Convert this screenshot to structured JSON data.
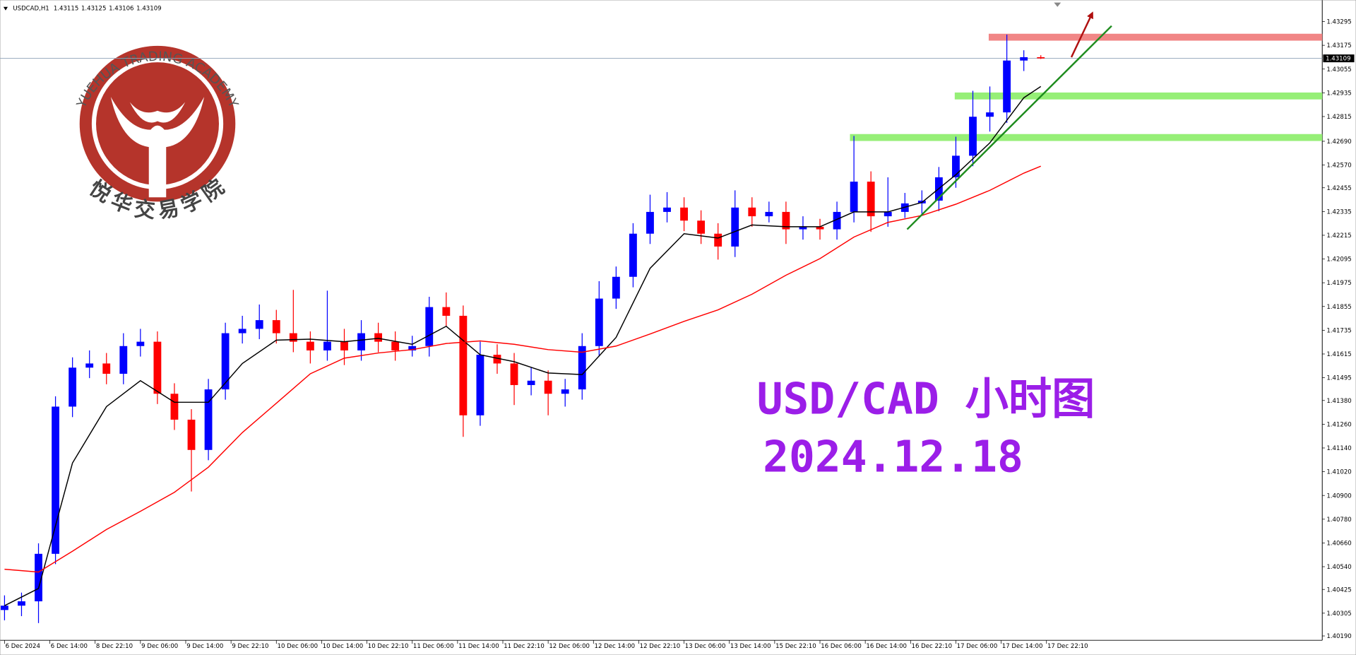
{
  "chart_data": {
    "type": "candlestick",
    "title": "USDCAD,H1",
    "headline": "USD/CAD 小时图",
    "date_label": "2024.12.18",
    "watermark": {
      "text": "YUEHUA TRADING ACADEMY",
      "subtext": "悦华交易学院"
    },
    "up_color": "#0000ff",
    "down_color": "#ff0000",
    "xlim": [
      -0.8,
      232.7
    ],
    "ylim": [
      1.40168,
      1.43404
    ],
    "xticks": [
      {
        "value": 0,
        "label": "6 Dec 2024"
      },
      {
        "value": 8,
        "label": "6 Dec 14:00"
      },
      {
        "value": 16,
        "label": "8 Dec 22:10"
      },
      {
        "value": 24,
        "label": "9 Dec 06:00"
      },
      {
        "value": 32,
        "label": "9 Dec 14:00"
      },
      {
        "value": 40,
        "label": "9 Dec 22:10"
      },
      {
        "value": 48,
        "label": "10 Dec 06:00"
      },
      {
        "value": 56,
        "label": "10 Dec 14:00"
      },
      {
        "value": 64,
        "label": "10 Dec 22:10"
      },
      {
        "value": 72,
        "label": "11 Dec 06:00"
      },
      {
        "value": 80,
        "label": "11 Dec 14:00"
      },
      {
        "value": 88,
        "label": "11 Dec 22:10"
      },
      {
        "value": 96,
        "label": "12 Dec 06:00"
      },
      {
        "value": 104,
        "label": "12 Dec 14:00"
      },
      {
        "value": 112,
        "label": "12 Dec 22:10"
      },
      {
        "value": 120,
        "label": "13 Dec 06:00"
      },
      {
        "value": 128,
        "label": "13 Dec 14:00"
      },
      {
        "value": 136,
        "label": "15 Dec 22:10"
      },
      {
        "value": 144,
        "label": "16 Dec 06:00"
      },
      {
        "value": 152,
        "label": "16 Dec 14:00"
      },
      {
        "value": 160,
        "label": "16 Dec 22:10"
      },
      {
        "value": 168,
        "label": "17 Dec 06:00"
      },
      {
        "value": 176,
        "label": "17 Dec 14:00"
      },
      {
        "value": 184,
        "label": "17 Dec 22:10"
      }
    ],
    "yticks": [
      1.43295,
      1.43175,
      1.43055,
      1.42935,
      1.42815,
      {
        "value": 1.4269,
        "label": "1.42690"
      },
      {
        "value": 1.4257,
        "label": "1.42570"
      },
      1.42455,
      1.42335,
      1.42215,
      1.42095,
      1.41975,
      1.41855,
      1.41735,
      1.41615,
      1.41495,
      {
        "value": 1.4138,
        "label": "1.41380"
      },
      {
        "value": 1.4126,
        "label": "1.41260"
      },
      {
        "value": 1.4114,
        "label": "1.41140"
      },
      {
        "value": 1.4102,
        "label": "1.41020"
      },
      {
        "value": 1.409,
        "label": "1.40900"
      },
      {
        "value": 1.4078,
        "label": "1.40780"
      },
      {
        "value": 1.4066,
        "label": "1.40660"
      },
      {
        "value": 1.4054,
        "label": "1.40540"
      },
      1.40425,
      1.40305,
      {
        "value": 1.4019,
        "label": "1.40190"
      }
    ],
    "x": [
      0,
      3,
      6,
      9,
      12,
      15,
      18,
      21,
      24,
      27,
      30,
      33,
      36,
      39,
      42,
      45,
      48,
      51,
      54,
      57,
      60,
      63,
      66,
      69,
      72,
      75,
      78,
      81,
      84,
      87,
      90,
      93,
      96,
      99,
      102,
      105,
      108,
      111,
      114,
      117,
      120,
      123,
      126,
      129,
      132,
      135,
      138,
      141,
      144,
      147,
      150,
      153,
      156,
      159,
      162,
      165,
      168,
      171,
      174,
      177,
      180,
      183
    ],
    "open": [
      1.40321,
      1.40343,
      1.40365,
      1.40605,
      1.41349,
      1.41546,
      1.41567,
      1.41515,
      1.41655,
      1.41677,
      1.41414,
      1.41283,
      1.4113,
      1.41436,
      1.4172,
      1.41742,
      1.41786,
      1.4172,
      1.41677,
      1.41633,
      1.41677,
      1.41633,
      1.4172,
      1.41677,
      1.41633,
      1.41655,
      1.41852,
      1.41808,
      1.41305,
      1.41611,
      1.41567,
      1.41458,
      1.4148,
      1.41414,
      1.41436,
      1.41655,
      1.41895,
      1.42005,
      1.42223,
      1.42333,
      1.42355,
      1.42289,
      1.42223,
      1.42158,
      1.42355,
      1.42311,
      1.42333,
      1.42245,
      1.42258,
      1.42245,
      1.42333,
      1.42486,
      1.42311,
      1.42333,
      1.42376,
      1.4239,
      1.42508,
      1.42617,
      1.42814,
      1.42836,
      1.43098,
      1.43115
    ],
    "high": [
      1.40395,
      1.40409,
      1.40658,
      1.41401,
      1.41598,
      1.41633,
      1.4162,
      1.4172,
      1.41742,
      1.41729,
      1.41467,
      1.41336,
      1.41489,
      1.41773,
      1.41808,
      1.41865,
      1.41838,
      1.41939,
      1.41729,
      1.41935,
      1.41742,
      1.41786,
      1.41773,
      1.41729,
      1.41707,
      1.41904,
      1.41926,
      1.4186,
      1.41677,
      1.41664,
      1.4162,
      1.41546,
      1.41532,
      1.41489,
      1.4172,
      1.41983,
      1.42057,
      1.42276,
      1.4242,
      1.42433,
      1.42407,
      1.42341,
      1.42276,
      1.42442,
      1.42407,
      1.42385,
      1.42385,
      1.42311,
      1.42298,
      1.42385,
      1.42717,
      1.42538,
      1.42508,
      1.42429,
      1.42442,
      1.4256,
      1.42713,
      1.42945,
      1.42967,
      1.43229,
      1.4315,
      1.43125
    ],
    "low": [
      1.40269,
      1.4029,
      1.40255,
      1.40553,
      1.41296,
      1.41493,
      1.41462,
      1.41462,
      1.41602,
      1.41362,
      1.41231,
      1.4092,
      1.41078,
      1.41384,
      1.41668,
      1.4169,
      1.41668,
      1.41624,
      1.41567,
      1.41581,
      1.41559,
      1.41581,
      1.41624,
      1.41581,
      1.41602,
      1.41602,
      1.41755,
      1.41196,
      1.41252,
      1.41515,
      1.41357,
      1.41406,
      1.41305,
      1.41349,
      1.41384,
      1.41602,
      1.41843,
      1.41952,
      1.42171,
      1.4228,
      1.42236,
      1.42171,
      1.42092,
      1.42105,
      1.42258,
      1.4228,
      1.42171,
      1.42193,
      1.42193,
      1.42193,
      1.4228,
      1.42232,
      1.42258,
      1.42302,
      1.42324,
      1.42337,
      1.42455,
      1.42564,
      1.42739,
      1.42783,
      1.43045,
      1.43106
    ],
    "close": [
      1.40343,
      1.40365,
      1.40605,
      1.41349,
      1.41546,
      1.41567,
      1.41515,
      1.41655,
      1.41677,
      1.41414,
      1.41283,
      1.4113,
      1.41436,
      1.4172,
      1.41742,
      1.41786,
      1.4172,
      1.41677,
      1.41633,
      1.41677,
      1.41633,
      1.4172,
      1.41677,
      1.41633,
      1.41655,
      1.41852,
      1.41808,
      1.41305,
      1.41611,
      1.41567,
      1.41458,
      1.4148,
      1.41414,
      1.41436,
      1.41655,
      1.41895,
      1.42005,
      1.42223,
      1.42333,
      1.42355,
      1.42289,
      1.42223,
      1.42158,
      1.42355,
      1.42311,
      1.42333,
      1.42245,
      1.42258,
      1.42245,
      1.42333,
      1.42486,
      1.42311,
      1.42333,
      1.42376,
      1.4239,
      1.42508,
      1.42617,
      1.42814,
      1.42836,
      1.43098,
      1.43115,
      1.43109
    ],
    "lines": [
      {
        "color": "#000000",
        "x": [
          0,
          6,
          12,
          18,
          24,
          30,
          36,
          42,
          48,
          54,
          60,
          66,
          72,
          78,
          84,
          90,
          96,
          102,
          108,
          114,
          120,
          126,
          132,
          138,
          144,
          150,
          156,
          162,
          168,
          174,
          180,
          183
        ],
        "values": [
          1.40343,
          1.4043,
          1.41064,
          1.41349,
          1.4148,
          1.41371,
          1.41371,
          1.41567,
          1.41685,
          1.4169,
          1.41677,
          1.41694,
          1.41664,
          1.41755,
          1.41611,
          1.41576,
          1.41519,
          1.41511,
          1.41699,
          1.42048,
          1.42223,
          1.42201,
          1.42267,
          1.42258,
          1.42258,
          1.42333,
          1.42333,
          1.42381,
          1.42521,
          1.42682,
          1.4291,
          1.42967
        ]
      },
      {
        "color": "#ff0000",
        "x": [
          0,
          6,
          12,
          18,
          24,
          30,
          36,
          42,
          48,
          54,
          60,
          66,
          72,
          78,
          84,
          90,
          96,
          102,
          108,
          114,
          120,
          126,
          132,
          138,
          144,
          150,
          156,
          162,
          168,
          174,
          180,
          183
        ],
        "values": [
          1.40527,
          1.40513,
          1.40618,
          1.40728,
          1.4082,
          1.40916,
          1.41043,
          1.41218,
          1.41366,
          1.41515,
          1.41594,
          1.4162,
          1.41637,
          1.41668,
          1.41681,
          1.41664,
          1.41637,
          1.41624,
          1.41655,
          1.41716,
          1.4178,
          1.41838,
          1.41917,
          1.42013,
          1.42097,
          1.42206,
          1.4228,
          1.42315,
          1.42372,
          1.42442,
          1.42529,
          1.42564
        ]
      }
    ],
    "zones": [
      {
        "color": "#f08080",
        "from": 173.8,
        "value": 1.43216
      },
      {
        "color": "#90ee70",
        "from": 167.8,
        "value": 1.42919
      },
      {
        "color": "#90ee70",
        "from": 149.3,
        "value": 1.42709
      }
    ],
    "trendline": {
      "color": "#1e8c1e",
      "x": [
        159.4,
        195.5
      ],
      "values": [
        1.42245,
        1.43273
      ]
    },
    "arrow": {
      "color": "#b01010",
      "x": [
        188.4,
        192.1
      ],
      "values": [
        1.43115,
        1.43338
      ]
    }
  }
}
